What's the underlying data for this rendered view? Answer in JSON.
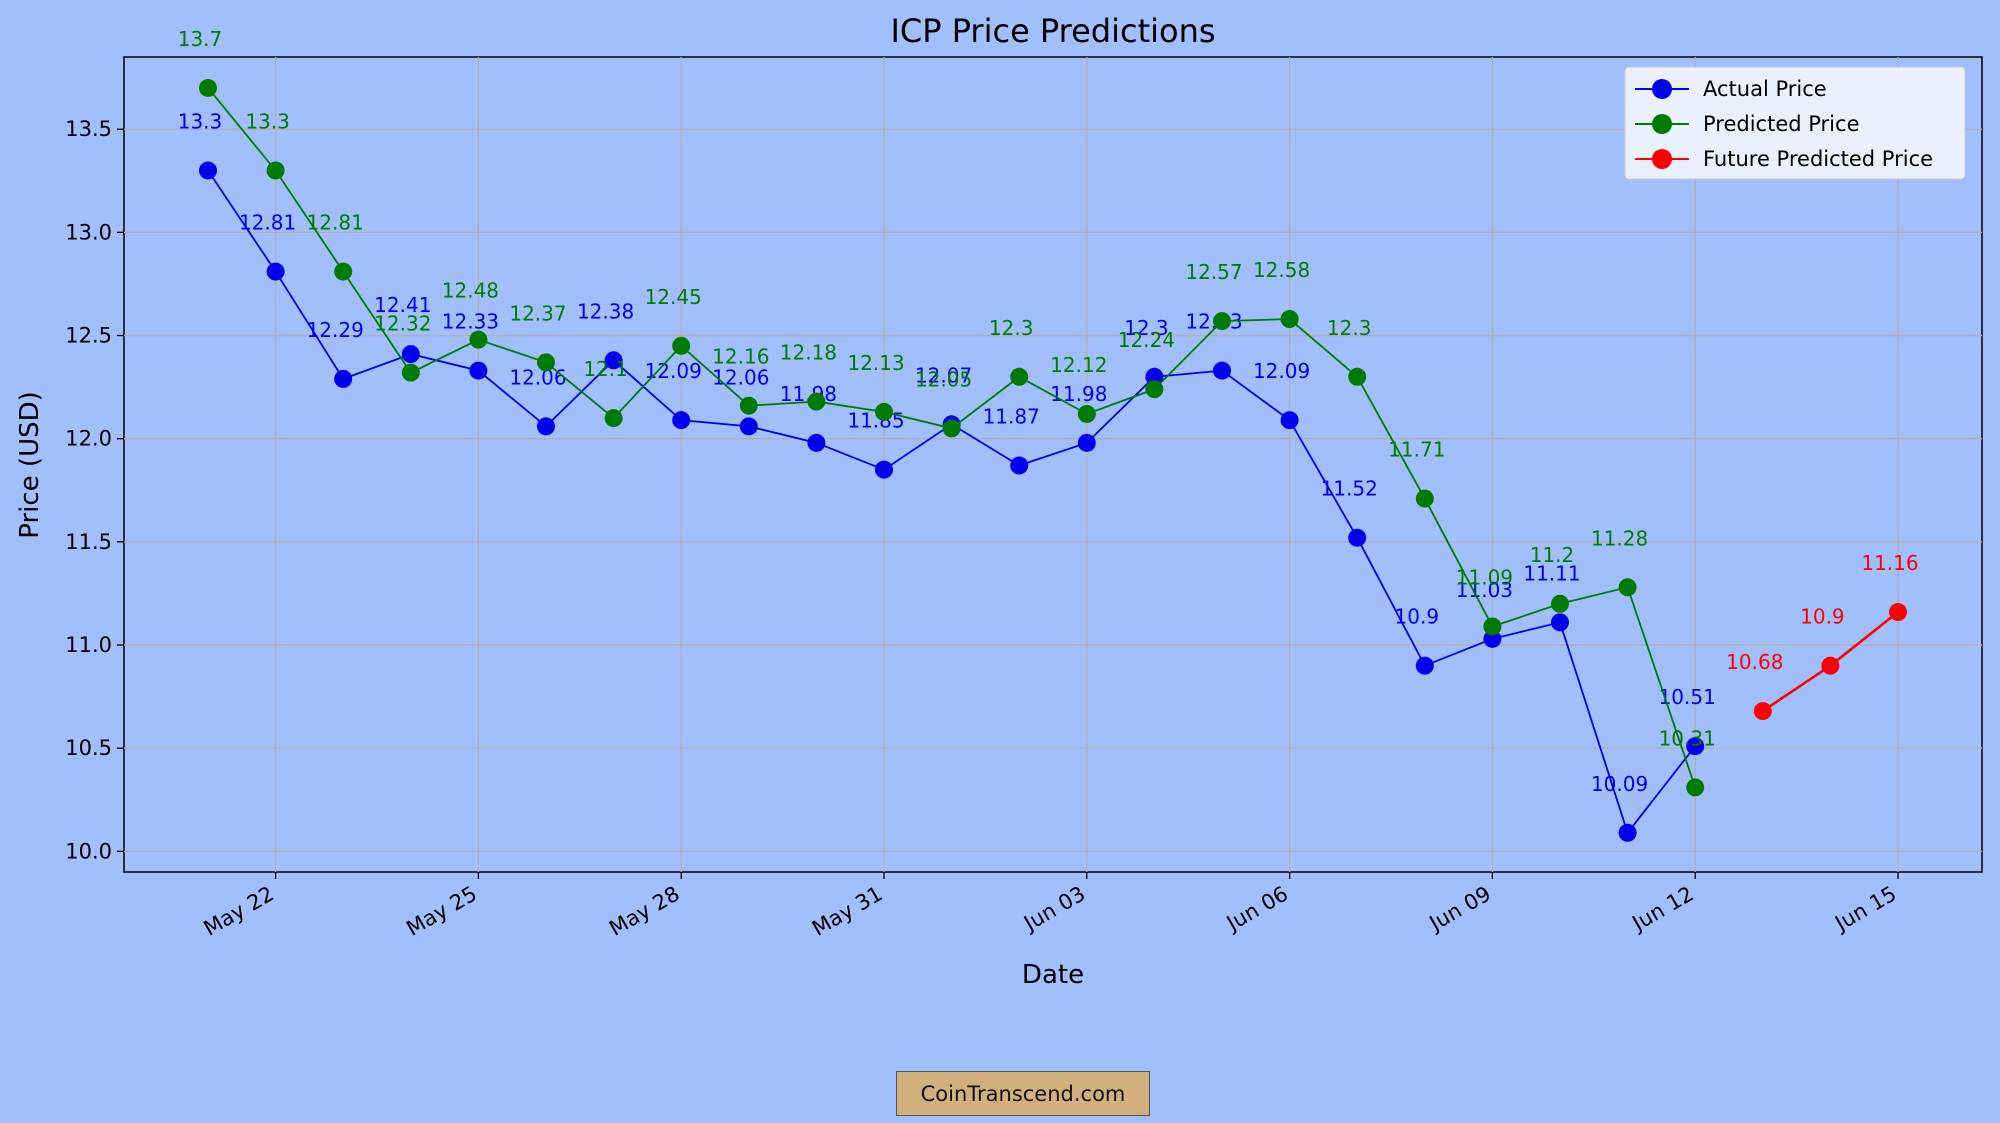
{
  "chart_data": {
    "type": "line",
    "title": "ICP Price Predictions",
    "xlabel": "Date",
    "ylabel": "Price (USD)",
    "ylim": [
      9.9,
      13.85
    ],
    "yticks": [
      10.0,
      10.5,
      11.0,
      11.5,
      12.0,
      12.5,
      13.0,
      13.5
    ],
    "ytick_labels": [
      "10.0",
      "10.5",
      "11.0",
      "11.5",
      "12.0",
      "12.5",
      "13.0",
      "13.5"
    ],
    "xticks": [
      {
        "day": 1,
        "label": "May 22"
      },
      {
        "day": 4,
        "label": "May 25"
      },
      {
        "day": 7,
        "label": "May 28"
      },
      {
        "day": 10,
        "label": "May 31"
      },
      {
        "day": 13,
        "label": "Jun 03"
      },
      {
        "day": 16,
        "label": "Jun 06"
      },
      {
        "day": 19,
        "label": "Jun 09"
      },
      {
        "day": 22,
        "label": "Jun 12"
      },
      {
        "day": 25,
        "label": "Jun 15"
      }
    ],
    "grid": true,
    "legend_position": "top-right",
    "series": [
      {
        "name": "Actual Price",
        "color": "#0000ee",
        "start_day": 0,
        "values": [
          13.3,
          12.81,
          12.29,
          12.41,
          12.33,
          12.06,
          12.38,
          12.09,
          12.06,
          11.98,
          11.85,
          12.07,
          11.87,
          11.98,
          12.3,
          12.33,
          12.09,
          11.52,
          10.9,
          11.03,
          11.11,
          10.09,
          10.51
        ],
        "labels": [
          "13.3",
          "12.81",
          "12.29",
          "12.41",
          "12.33",
          "12.06",
          "12.38",
          "12.09",
          "12.06",
          "11.98",
          "11.85",
          "12.07",
          "11.87",
          "11.98",
          "12.3",
          "12.33",
          "12.09",
          "11.52",
          "10.9",
          "11.03",
          "11.11",
          "10.09",
          "10.51"
        ]
      },
      {
        "name": "Predicted Price",
        "color": "#007a00",
        "start_day": 0,
        "values": [
          13.7,
          13.3,
          12.81,
          12.32,
          12.48,
          12.37,
          12.1,
          12.45,
          12.16,
          12.18,
          12.13,
          12.05,
          12.3,
          12.12,
          12.24,
          12.57,
          12.58,
          12.3,
          11.71,
          11.09,
          11.2,
          11.28,
          10.31
        ],
        "labels": [
          "13.7",
          "13.3",
          "12.81",
          "12.32",
          "12.48",
          "12.37",
          "12.1",
          "12.45",
          "12.16",
          "12.18",
          "12.13",
          "12.05",
          "12.3",
          "12.12",
          "12.24",
          "12.57",
          "12.58",
          "12.3",
          "11.71",
          "11.09",
          "11.2",
          "11.28",
          "10.31"
        ]
      },
      {
        "name": "Future Predicted Price",
        "color": "#ff0000",
        "start_day": 23,
        "values": [
          10.68,
          10.9,
          11.16
        ],
        "labels": [
          "10.68",
          "10.9",
          "11.16"
        ]
      }
    ]
  },
  "footer": {
    "watermark": "CoinTranscend.com"
  }
}
